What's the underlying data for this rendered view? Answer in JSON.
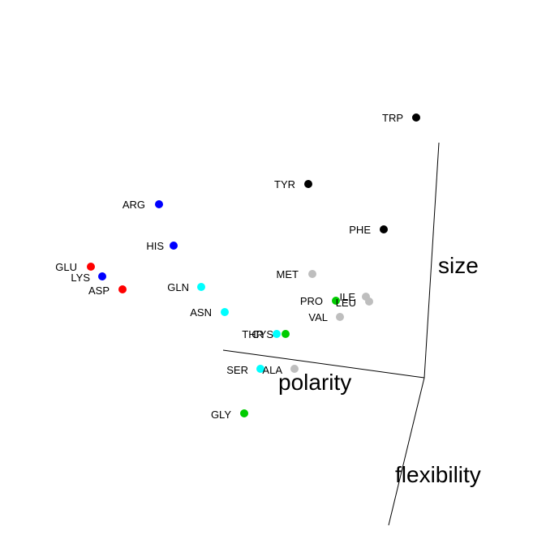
{
  "chart_data": {
    "type": "scatter",
    "subtype": "3d-scatter",
    "title": "",
    "axes": [
      {
        "name": "polarity"
      },
      {
        "name": "size"
      },
      {
        "name": "flexibility"
      }
    ],
    "colors": {
      "acidic": "#ff0000",
      "basic": "#0000ff",
      "polar": "#00ffff",
      "special": "#00cc00",
      "hydrophobic": "#bebebe",
      "aromatic": "#000000"
    },
    "points": [
      {
        "label": "TRP",
        "group": "aromatic"
      },
      {
        "label": "TYR",
        "group": "aromatic"
      },
      {
        "label": "PHE",
        "group": "aromatic"
      },
      {
        "label": "ARG",
        "group": "basic"
      },
      {
        "label": "HIS",
        "group": "basic"
      },
      {
        "label": "LYS",
        "group": "basic"
      },
      {
        "label": "GLU",
        "group": "acidic"
      },
      {
        "label": "ASP",
        "group": "acidic"
      },
      {
        "label": "GLN",
        "group": "polar"
      },
      {
        "label": "ASN",
        "group": "polar"
      },
      {
        "label": "THR",
        "group": "polar"
      },
      {
        "label": "SER",
        "group": "polar"
      },
      {
        "label": "CYS",
        "group": "special"
      },
      {
        "label": "PRO",
        "group": "special"
      },
      {
        "label": "GLY",
        "group": "special"
      },
      {
        "label": "MET",
        "group": "hydrophobic"
      },
      {
        "label": "ILE",
        "group": "hydrophobic"
      },
      {
        "label": "LEU",
        "group": "hydrophobic"
      },
      {
        "label": "VAL",
        "group": "hydrophobic"
      },
      {
        "label": "ALA",
        "group": "hydrophobic"
      }
    ]
  }
}
